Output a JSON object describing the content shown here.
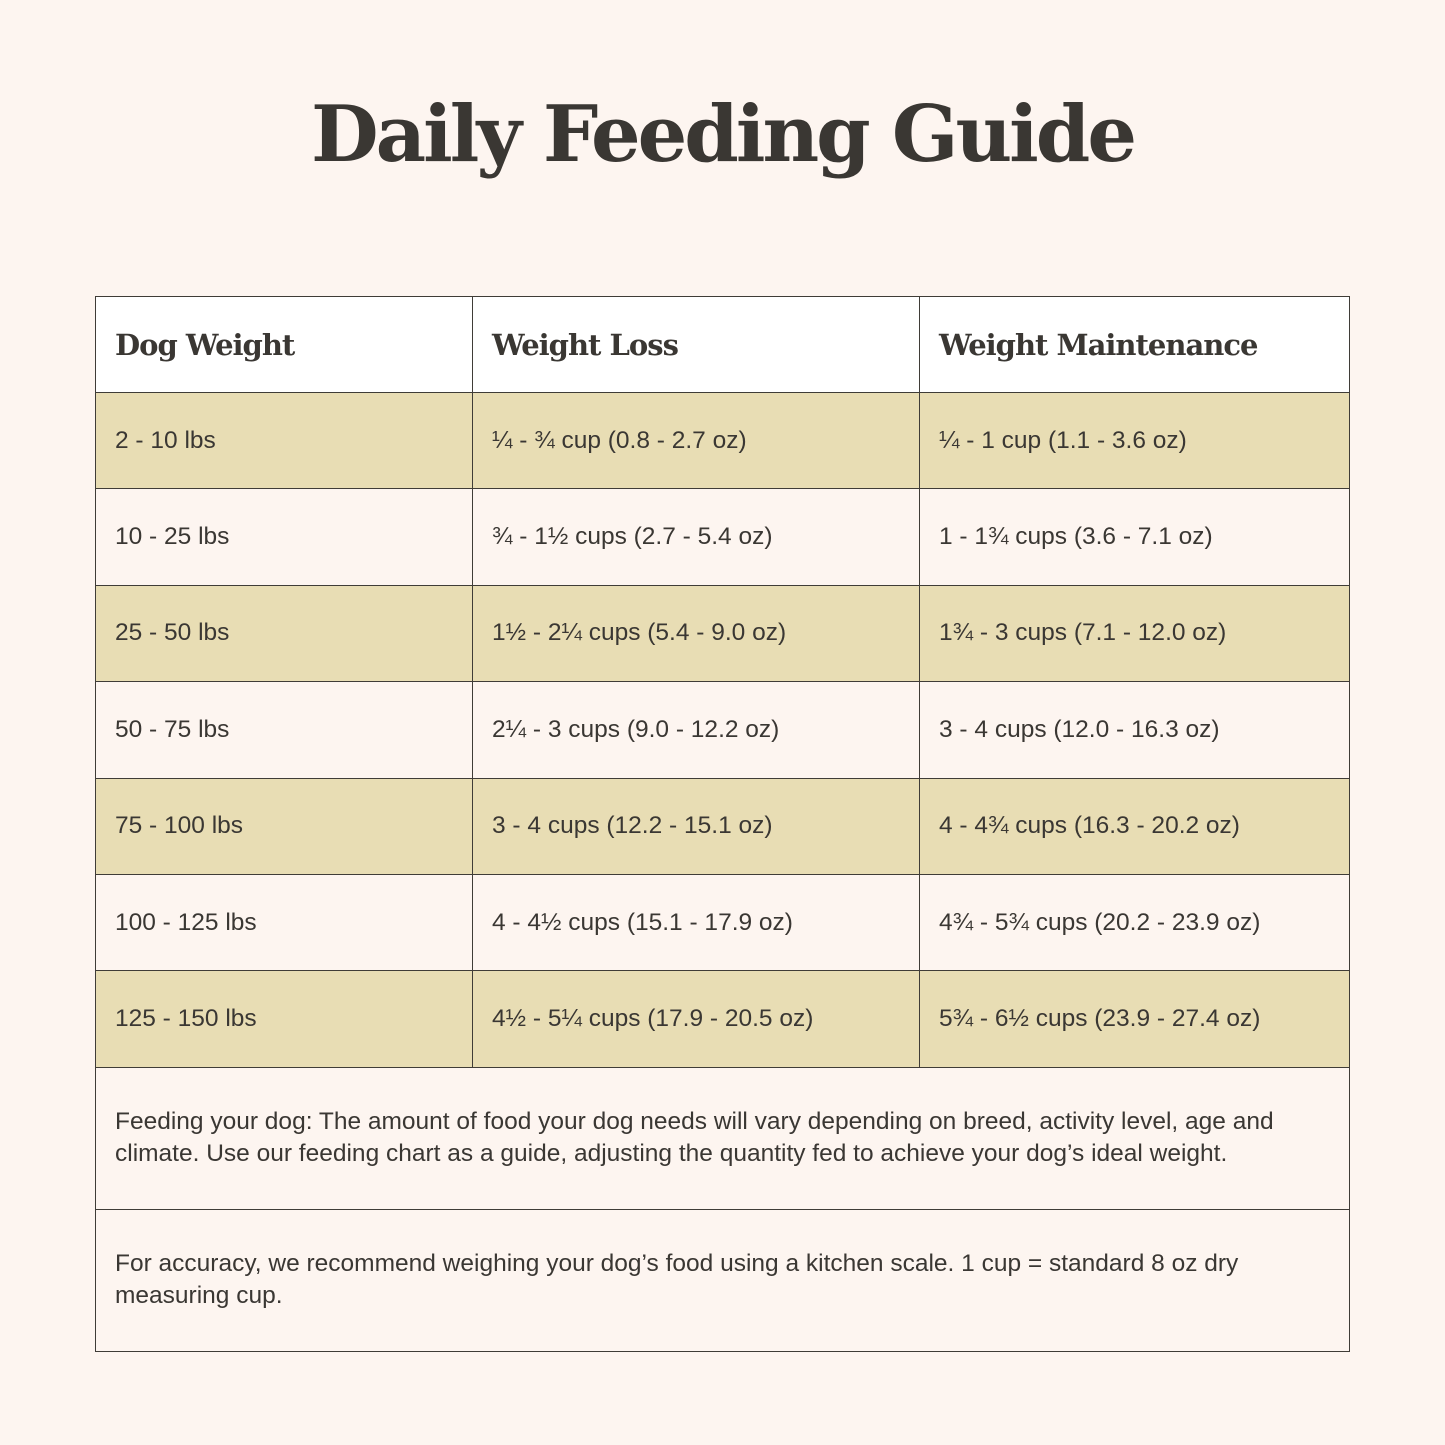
{
  "title": "Daily Feeding Guide",
  "colors": {
    "background": "#fdf5f0",
    "header_row": "#ffffff",
    "shaded_row": "#e8ddb4",
    "border": "#3f3c37",
    "text": "#3a3733"
  },
  "table": {
    "headers": [
      "Dog Weight",
      "Weight Loss",
      "Weight Maintenance"
    ],
    "rows": [
      [
        "2 - 10 lbs",
        "¼ - ¾ cup (0.8 - 2.7 oz)",
        "¼ - 1 cup (1.1 - 3.6 oz)"
      ],
      [
        "10 - 25 lbs",
        "¾ - 1½ cups (2.7 - 5.4 oz)",
        "1 - 1¾ cups (3.6 - 7.1 oz)"
      ],
      [
        "25 - 50 lbs",
        "1½ - 2¼ cups (5.4 - 9.0 oz)",
        "1¾ - 3 cups (7.1 - 12.0 oz)"
      ],
      [
        "50 - 75 lbs",
        "2¼ - 3 cups (9.0 - 12.2 oz)",
        "3 - 4 cups (12.0 - 16.3 oz)"
      ],
      [
        "75 - 100 lbs",
        "3 - 4 cups (12.2 - 15.1 oz)",
        "4 - 4¾ cups (16.3 - 20.2 oz)"
      ],
      [
        "100 - 125 lbs",
        "4 - 4½ cups (15.1 - 17.9 oz)",
        "4¾ - 5¾ cups (20.2 - 23.9 oz)"
      ],
      [
        "125 - 150 lbs",
        "4½ - 5¼ cups (17.9 - 20.5 oz)",
        "5¾ - 6½ cups (23.9 - 27.4 oz)"
      ]
    ]
  },
  "notes": [
    "Feeding your dog: The amount of food your dog needs will vary depending on breed, activity level, age and climate. Use our feeding chart as a guide, adjusting the quantity fed to achieve your dog’s ideal weight.",
    "For accuracy, we recommend weighing your dog’s food using a kitchen scale. 1 cup = standard 8 oz dry measuring cup."
  ]
}
